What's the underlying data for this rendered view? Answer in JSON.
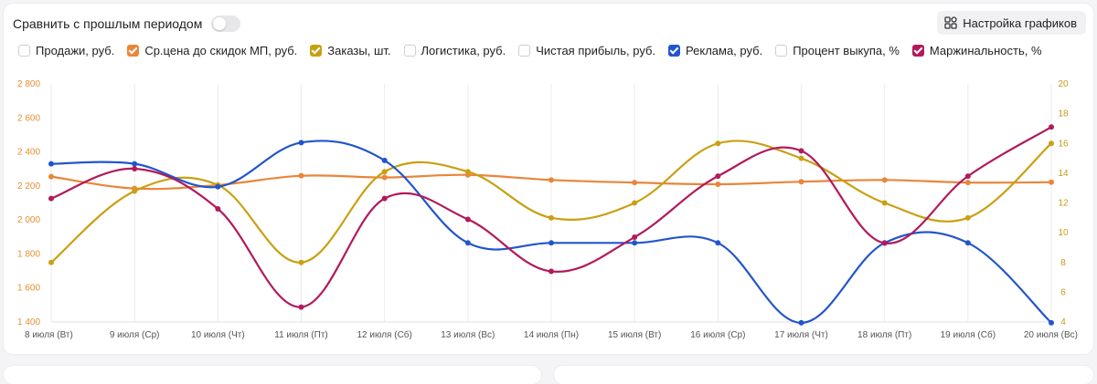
{
  "header": {
    "compare_label": "Сравнить с прошлым периодом",
    "settings_label": "Настройка графиков"
  },
  "legend": [
    {
      "label": "Продажи, руб.",
      "checked": false,
      "color": ""
    },
    {
      "label": "Ср.цена до скидок МП, руб.",
      "checked": true,
      "color": "#E8863A"
    },
    {
      "label": "Заказы, шт.",
      "checked": true,
      "color": "#C9A012"
    },
    {
      "label": "Логистика, руб.",
      "checked": false,
      "color": ""
    },
    {
      "label": "Чистая прибыль, руб.",
      "checked": false,
      "color": ""
    },
    {
      "label": "Реклама, руб.",
      "checked": true,
      "color": "#2255CC"
    },
    {
      "label": "Процент выкупа, %",
      "checked": false,
      "color": ""
    },
    {
      "label": "Маржинальность, %",
      "checked": true,
      "color": "#B21A5B"
    }
  ],
  "chart_data": {
    "type": "line",
    "title": "",
    "categories": [
      "8 июля (Вт)",
      "9 июля (Ср)",
      "10 июля (Чт)",
      "11 июля (Пт)",
      "12 июля (Сб)",
      "13 июля (Вс)",
      "14 июля (Пн)",
      "15 июля (Вт)",
      "16 июля (Ср)",
      "17 июля (Чт)",
      "18 июля (Пт)",
      "19 июля (Сб)",
      "20 июля (Вс)"
    ],
    "left_axis": {
      "ylim": [
        1400,
        2800
      ],
      "ticks": [
        "1 400",
        "1 600",
        "1 800",
        "2 000",
        "2 200",
        "2 400",
        "2 600",
        "2 800"
      ],
      "color": "#E58F30"
    },
    "right_axis": {
      "ylim": [
        4,
        20
      ],
      "ticks": [
        "4",
        "6",
        "8",
        "10",
        "12",
        "14",
        "16",
        "18",
        "20"
      ],
      "color": "#C79A16"
    },
    "grid": "vertical",
    "series": [
      {
        "name": "Ср.цена до скидок МП, руб.",
        "axis": "left",
        "color": "#E8863A",
        "values": [
          2255,
          2185,
          2205,
          2260,
          2250,
          2265,
          2235,
          2220,
          2210,
          2225,
          2235,
          2220,
          2222
        ]
      },
      {
        "name": "Заказы, шт.",
        "axis": "right",
        "color": "#C9A012",
        "values": [
          8,
          12.8,
          13.2,
          8,
          14.1,
          14.1,
          11,
          12,
          16,
          15,
          12,
          11,
          16
        ]
      },
      {
        "name": "Реклама, руб.",
        "axis": "left",
        "color": "#2255CC",
        "values": [
          2330,
          2330,
          2195,
          2455,
          2350,
          1865,
          1865,
          1865,
          1865,
          1395,
          1865,
          1865,
          1395
        ]
      },
      {
        "name": "Маржинальность, %",
        "axis": "right",
        "color": "#B21A5B",
        "values": [
          12.3,
          14.3,
          11.6,
          5,
          12.3,
          10.9,
          7.4,
          9.7,
          13.8,
          15.5,
          9.3,
          13.8,
          17.1
        ]
      }
    ]
  }
}
